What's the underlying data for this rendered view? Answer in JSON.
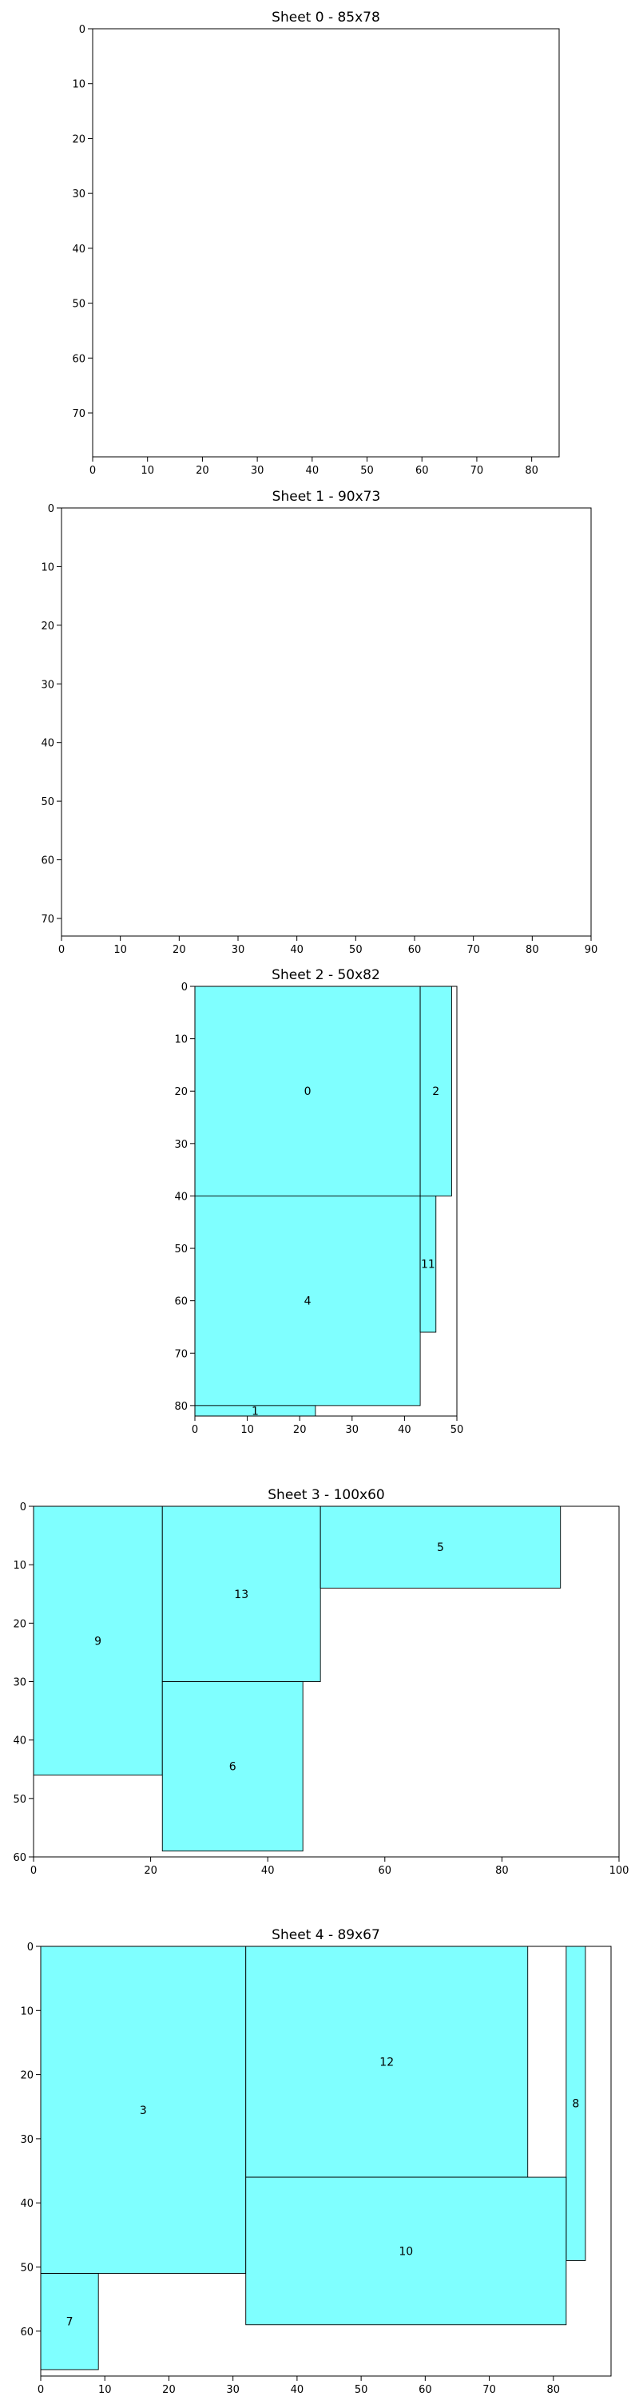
{
  "chart_data": [
    {
      "type": "rectangle-packing",
      "title": "Sheet 0 - 85x78",
      "xlim": [
        0,
        85
      ],
      "ylim": [
        0,
        78
      ],
      "y_inverted": true,
      "xticks": [
        0,
        10,
        20,
        30,
        40,
        50,
        60,
        70,
        80
      ],
      "yticks": [
        0,
        10,
        20,
        30,
        40,
        50,
        60,
        70
      ],
      "pieces": []
    },
    {
      "type": "rectangle-packing",
      "title": "Sheet 1 - 90x73",
      "xlim": [
        0,
        90
      ],
      "ylim": [
        0,
        73
      ],
      "y_inverted": true,
      "xticks": [
        0,
        10,
        20,
        30,
        40,
        50,
        60,
        70,
        80,
        90
      ],
      "yticks": [
        0,
        10,
        20,
        30,
        40,
        50,
        60,
        70
      ],
      "pieces": []
    },
    {
      "type": "rectangle-packing",
      "title": "Sheet 2 - 50x82",
      "xlim": [
        0,
        50
      ],
      "ylim": [
        0,
        82
      ],
      "y_inverted": true,
      "xticks": [
        0,
        10,
        20,
        30,
        40,
        50
      ],
      "yticks": [
        0,
        10,
        20,
        30,
        40,
        50,
        60,
        70,
        80
      ],
      "pieces": [
        {
          "label": "0",
          "x": 0,
          "y": 0,
          "w": 43,
          "h": 40
        },
        {
          "label": "2",
          "x": 43,
          "y": 0,
          "w": 6,
          "h": 40
        },
        {
          "label": "4",
          "x": 0,
          "y": 40,
          "w": 43,
          "h": 40
        },
        {
          "label": "11",
          "x": 43,
          "y": 40,
          "w": 3,
          "h": 26
        },
        {
          "label": "1",
          "x": 0,
          "y": 80,
          "w": 23,
          "h": 2
        }
      ]
    },
    {
      "type": "rectangle-packing",
      "title": "Sheet 3 - 100x60",
      "xlim": [
        0,
        100
      ],
      "ylim": [
        0,
        60
      ],
      "y_inverted": true,
      "xticks": [
        0,
        20,
        40,
        60,
        80,
        100
      ],
      "yticks": [
        0,
        10,
        20,
        30,
        40,
        50,
        60
      ],
      "pieces": [
        {
          "label": "9",
          "x": 0,
          "y": 0,
          "w": 22,
          "h": 46
        },
        {
          "label": "13",
          "x": 22,
          "y": 0,
          "w": 27,
          "h": 30
        },
        {
          "label": "5",
          "x": 49,
          "y": 0,
          "w": 41,
          "h": 14
        },
        {
          "label": "6",
          "x": 22,
          "y": 30,
          "w": 24,
          "h": 29
        }
      ]
    },
    {
      "type": "rectangle-packing",
      "title": "Sheet 4 - 89x67",
      "xlim": [
        0,
        89
      ],
      "ylim": [
        0,
        67
      ],
      "y_inverted": true,
      "xticks": [
        0,
        10,
        20,
        30,
        40,
        50,
        60,
        70,
        80
      ],
      "yticks": [
        0,
        10,
        20,
        30,
        40,
        50,
        60
      ],
      "pieces": [
        {
          "label": "3",
          "x": 0,
          "y": 0,
          "w": 32,
          "h": 51
        },
        {
          "label": "12",
          "x": 32,
          "y": 0,
          "w": 44,
          "h": 36
        },
        {
          "label": "8",
          "x": 82,
          "y": 0,
          "w": 3,
          "h": 49
        },
        {
          "label": "10",
          "x": 32,
          "y": 36,
          "w": 50,
          "h": 23
        },
        {
          "label": "7",
          "x": 0,
          "y": 51,
          "w": 9,
          "h": 15
        }
      ]
    }
  ]
}
